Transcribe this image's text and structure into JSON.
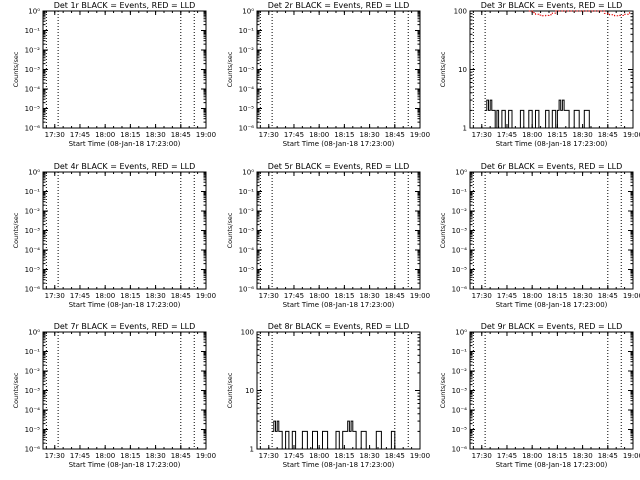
{
  "chart_data": [
    {
      "type": "line",
      "title": "Det 1r BLACK = Events, RED = LLD",
      "xlabel": "Start Time (08-Jan-18 17:23:00)",
      "ylabel": "Counts/sec",
      "xticks": [
        "17:30",
        "17:45",
        "18:00",
        "18:15",
        "18:30",
        "18:45",
        "19:00"
      ],
      "yscale": "log",
      "yticks": [
        "10⁰",
        "10⁻¹",
        "10⁻²",
        "10⁻³",
        "10⁻⁴",
        "10⁻⁵",
        "10⁻⁶"
      ],
      "xlim": [
        "17:23",
        "19:00"
      ],
      "ylim": [
        1e-06,
        1
      ],
      "vlines": [
        "17:25",
        "17:32",
        "18:45",
        "18:53"
      ],
      "series": [
        {
          "color": "black",
          "x": [],
          "y": []
        },
        {
          "color": "red",
          "x": [],
          "y": []
        }
      ]
    },
    {
      "type": "line",
      "title": "Det 2r BLACK = Events, RED = LLD",
      "xlabel": "Start Time (08-Jan-18 17:23:00)",
      "ylabel": "Counts/sec",
      "xticks": [
        "17:30",
        "17:45",
        "18:00",
        "18:15",
        "18:30",
        "18:45",
        "19:00"
      ],
      "yscale": "log",
      "yticks": [
        "10⁰",
        "10⁻¹",
        "10⁻²",
        "10⁻³",
        "10⁻⁴",
        "10⁻⁵",
        "10⁻⁶"
      ],
      "xlim": [
        "17:23",
        "19:00"
      ],
      "ylim": [
        1e-06,
        1
      ],
      "vlines": [
        "17:25",
        "17:32",
        "18:45",
        "18:53"
      ],
      "series": [
        {
          "color": "black",
          "x": [],
          "y": []
        },
        {
          "color": "red",
          "x": [],
          "y": []
        }
      ]
    },
    {
      "type": "line",
      "title": "Det 3r BLACK = Events, RED = LLD",
      "xlabel": "Start Time (08-Jan-18 17:23:00)",
      "ylabel": "Counts/sec",
      "xticks": [
        "17:30",
        "17:45",
        "18:00",
        "18:15",
        "18:30",
        "18:45",
        "19:00"
      ],
      "yscale": "log",
      "yticks": [
        "1",
        "10",
        "100"
      ],
      "xlim": [
        "17:23",
        "19:00"
      ],
      "ylim": [
        1,
        100
      ],
      "vlines": [
        "17:25",
        "17:32",
        "18:45",
        "18:53"
      ],
      "series": [
        {
          "color": "black",
          "x": [
            "17:32",
            "17:33",
            "17:34",
            "17:35",
            "17:36",
            "17:37",
            "17:38",
            "17:39",
            "17:40",
            "17:42",
            "17:44",
            "17:46",
            "17:48",
            "17:50",
            "17:53",
            "17:55",
            "17:58",
            "18:00",
            "18:02",
            "18:04",
            "18:06",
            "18:08",
            "18:10",
            "18:12",
            "18:14",
            "18:15",
            "18:16",
            "18:17",
            "18:18",
            "18:19",
            "18:20",
            "18:22",
            "18:25",
            "18:28",
            "18:31",
            "18:34",
            "18:37",
            "18:40",
            "18:43",
            "18:45"
          ],
          "y": [
            2,
            3,
            2,
            3,
            2,
            2,
            1,
            2,
            1,
            2,
            1,
            2,
            1,
            1,
            2,
            1,
            2,
            1,
            2,
            1,
            1,
            2,
            1,
            2,
            1,
            2,
            3,
            2,
            3,
            2,
            2,
            1,
            2,
            1,
            2,
            1,
            1,
            1,
            1,
            1
          ]
        },
        {
          "color": "red",
          "x": [
            "17:58",
            "18:00",
            "18:02",
            "18:04",
            "18:06",
            "18:08",
            "18:10",
            "18:12",
            "18:14",
            "18:40",
            "18:43",
            "18:46",
            "18:49",
            "18:52",
            "18:55",
            "18:58"
          ],
          "y": [
            100,
            94,
            88,
            85,
            83,
            84,
            86,
            92,
            100,
            100,
            91,
            86,
            83,
            84,
            88,
            98
          ]
        }
      ]
    },
    {
      "type": "line",
      "title": "Det 4r BLACK = Events, RED = LLD",
      "xlabel": "Start Time (08-Jan-18 17:23:00)",
      "ylabel": "Counts/sec",
      "xticks": [
        "17:30",
        "17:45",
        "18:00",
        "18:15",
        "18:30",
        "18:45",
        "19:00"
      ],
      "yscale": "log",
      "yticks": [
        "10⁰",
        "10⁻¹",
        "10⁻²",
        "10⁻³",
        "10⁻⁴",
        "10⁻⁵",
        "10⁻⁶"
      ],
      "xlim": [
        "17:23",
        "19:00"
      ],
      "ylim": [
        1e-06,
        1
      ],
      "vlines": [
        "17:25",
        "17:32",
        "18:45",
        "18:53"
      ],
      "series": [
        {
          "color": "black",
          "x": [],
          "y": []
        },
        {
          "color": "red",
          "x": [],
          "y": []
        }
      ]
    },
    {
      "type": "line",
      "title": "Det 5r BLACK = Events, RED = LLD",
      "xlabel": "Start Time (08-Jan-18 17:23:00)",
      "ylabel": "Counts/sec",
      "xticks": [
        "17:30",
        "17:45",
        "18:00",
        "18:15",
        "18:30",
        "18:45",
        "19:00"
      ],
      "yscale": "log",
      "yticks": [
        "10⁰",
        "10⁻¹",
        "10⁻²",
        "10⁻³",
        "10⁻⁴",
        "10⁻⁵",
        "10⁻⁶"
      ],
      "xlim": [
        "17:23",
        "19:00"
      ],
      "ylim": [
        1e-06,
        1
      ],
      "vlines": [
        "17:25",
        "17:32",
        "18:45",
        "18:53"
      ],
      "series": [
        {
          "color": "black",
          "x": [],
          "y": []
        },
        {
          "color": "red",
          "x": [],
          "y": []
        }
      ]
    },
    {
      "type": "line",
      "title": "Det 6r BLACK = Events, RED = LLD",
      "xlabel": "Start Time (08-Jan-18 17:23:00)",
      "ylabel": "Counts/sec",
      "xticks": [
        "17:30",
        "17:45",
        "18:00",
        "18:15",
        "18:30",
        "18:45",
        "19:00"
      ],
      "yscale": "log",
      "yticks": [
        "10⁰",
        "10⁻¹",
        "10⁻²",
        "10⁻³",
        "10⁻⁴",
        "10⁻⁵",
        "10⁻⁶"
      ],
      "xlim": [
        "17:23",
        "19:00"
      ],
      "ylim": [
        1e-06,
        1
      ],
      "vlines": [
        "17:25",
        "17:32",
        "18:45",
        "18:53"
      ],
      "series": [
        {
          "color": "black",
          "x": [],
          "y": []
        },
        {
          "color": "red",
          "x": [],
          "y": []
        }
      ]
    },
    {
      "type": "line",
      "title": "Det 7r BLACK = Events, RED = LLD",
      "xlabel": "Start Time (08-Jan-18 17:23:00)",
      "ylabel": "Counts/sec",
      "xticks": [
        "17:30",
        "17:45",
        "18:00",
        "18:15",
        "18:30",
        "18:45",
        "19:00"
      ],
      "yscale": "log",
      "yticks": [
        "10⁰",
        "10⁻¹",
        "10⁻²",
        "10⁻³",
        "10⁻⁴",
        "10⁻⁵",
        "10⁻⁶"
      ],
      "xlim": [
        "17:23",
        "19:00"
      ],
      "ylim": [
        1e-06,
        1
      ],
      "vlines": [
        "17:25",
        "17:32",
        "18:45",
        "18:53"
      ],
      "series": [
        {
          "color": "black",
          "x": [],
          "y": []
        },
        {
          "color": "red",
          "x": [],
          "y": []
        }
      ]
    },
    {
      "type": "line",
      "title": "Det 8r BLACK = Events, RED = LLD",
      "xlabel": "Start Time (08-Jan-18 17:23:00)",
      "ylabel": "Counts/sec",
      "xticks": [
        "17:30",
        "17:45",
        "18:00",
        "18:15",
        "18:30",
        "18:45",
        "19:00"
      ],
      "yscale": "log",
      "yticks": [
        "1",
        "10",
        "100"
      ],
      "xlim": [
        "17:23",
        "19:00"
      ],
      "ylim": [
        1,
        100
      ],
      "vlines": [
        "17:25",
        "17:32",
        "18:45",
        "18:53"
      ],
      "series": [
        {
          "color": "black",
          "x": [
            "17:32",
            "17:33",
            "17:34",
            "17:35",
            "17:36",
            "17:37",
            "17:38",
            "17:40",
            "17:42",
            "17:44",
            "17:46",
            "17:48",
            "17:50",
            "17:53",
            "17:56",
            "17:59",
            "18:02",
            "18:05",
            "18:08",
            "18:10",
            "18:12",
            "18:14",
            "18:16",
            "18:17",
            "18:18",
            "18:19",
            "18:20",
            "18:22",
            "18:25",
            "18:28",
            "18:31",
            "18:34",
            "18:37",
            "18:40",
            "18:43",
            "18:45"
          ],
          "y": [
            2,
            3,
            2,
            3,
            2,
            2,
            1,
            2,
            1,
            2,
            1,
            1,
            2,
            1,
            2,
            1,
            2,
            1,
            1,
            2,
            1,
            2,
            2,
            3,
            2,
            3,
            2,
            1,
            2,
            1,
            1,
            2,
            1,
            1,
            2,
            1
          ]
        },
        {
          "color": "red",
          "x": [],
          "y": []
        }
      ]
    },
    {
      "type": "line",
      "title": "Det 9r BLACK = Events, RED = LLD",
      "xlabel": "Start Time (08-Jan-18 17:23:00)",
      "ylabel": "Counts/sec",
      "xticks": [
        "17:30",
        "17:45",
        "18:00",
        "18:15",
        "18:30",
        "18:45",
        "19:00"
      ],
      "yscale": "log",
      "yticks": [
        "10⁰",
        "10⁻¹",
        "10⁻²",
        "10⁻³",
        "10⁻⁴",
        "10⁻⁵",
        "10⁻⁶"
      ],
      "xlim": [
        "17:23",
        "19:00"
      ],
      "ylim": [
        1e-06,
        1
      ],
      "vlines": [
        "17:25",
        "17:32",
        "18:45",
        "18:53"
      ],
      "series": [
        {
          "color": "black",
          "x": [],
          "y": []
        },
        {
          "color": "red",
          "x": [],
          "y": []
        }
      ]
    }
  ]
}
